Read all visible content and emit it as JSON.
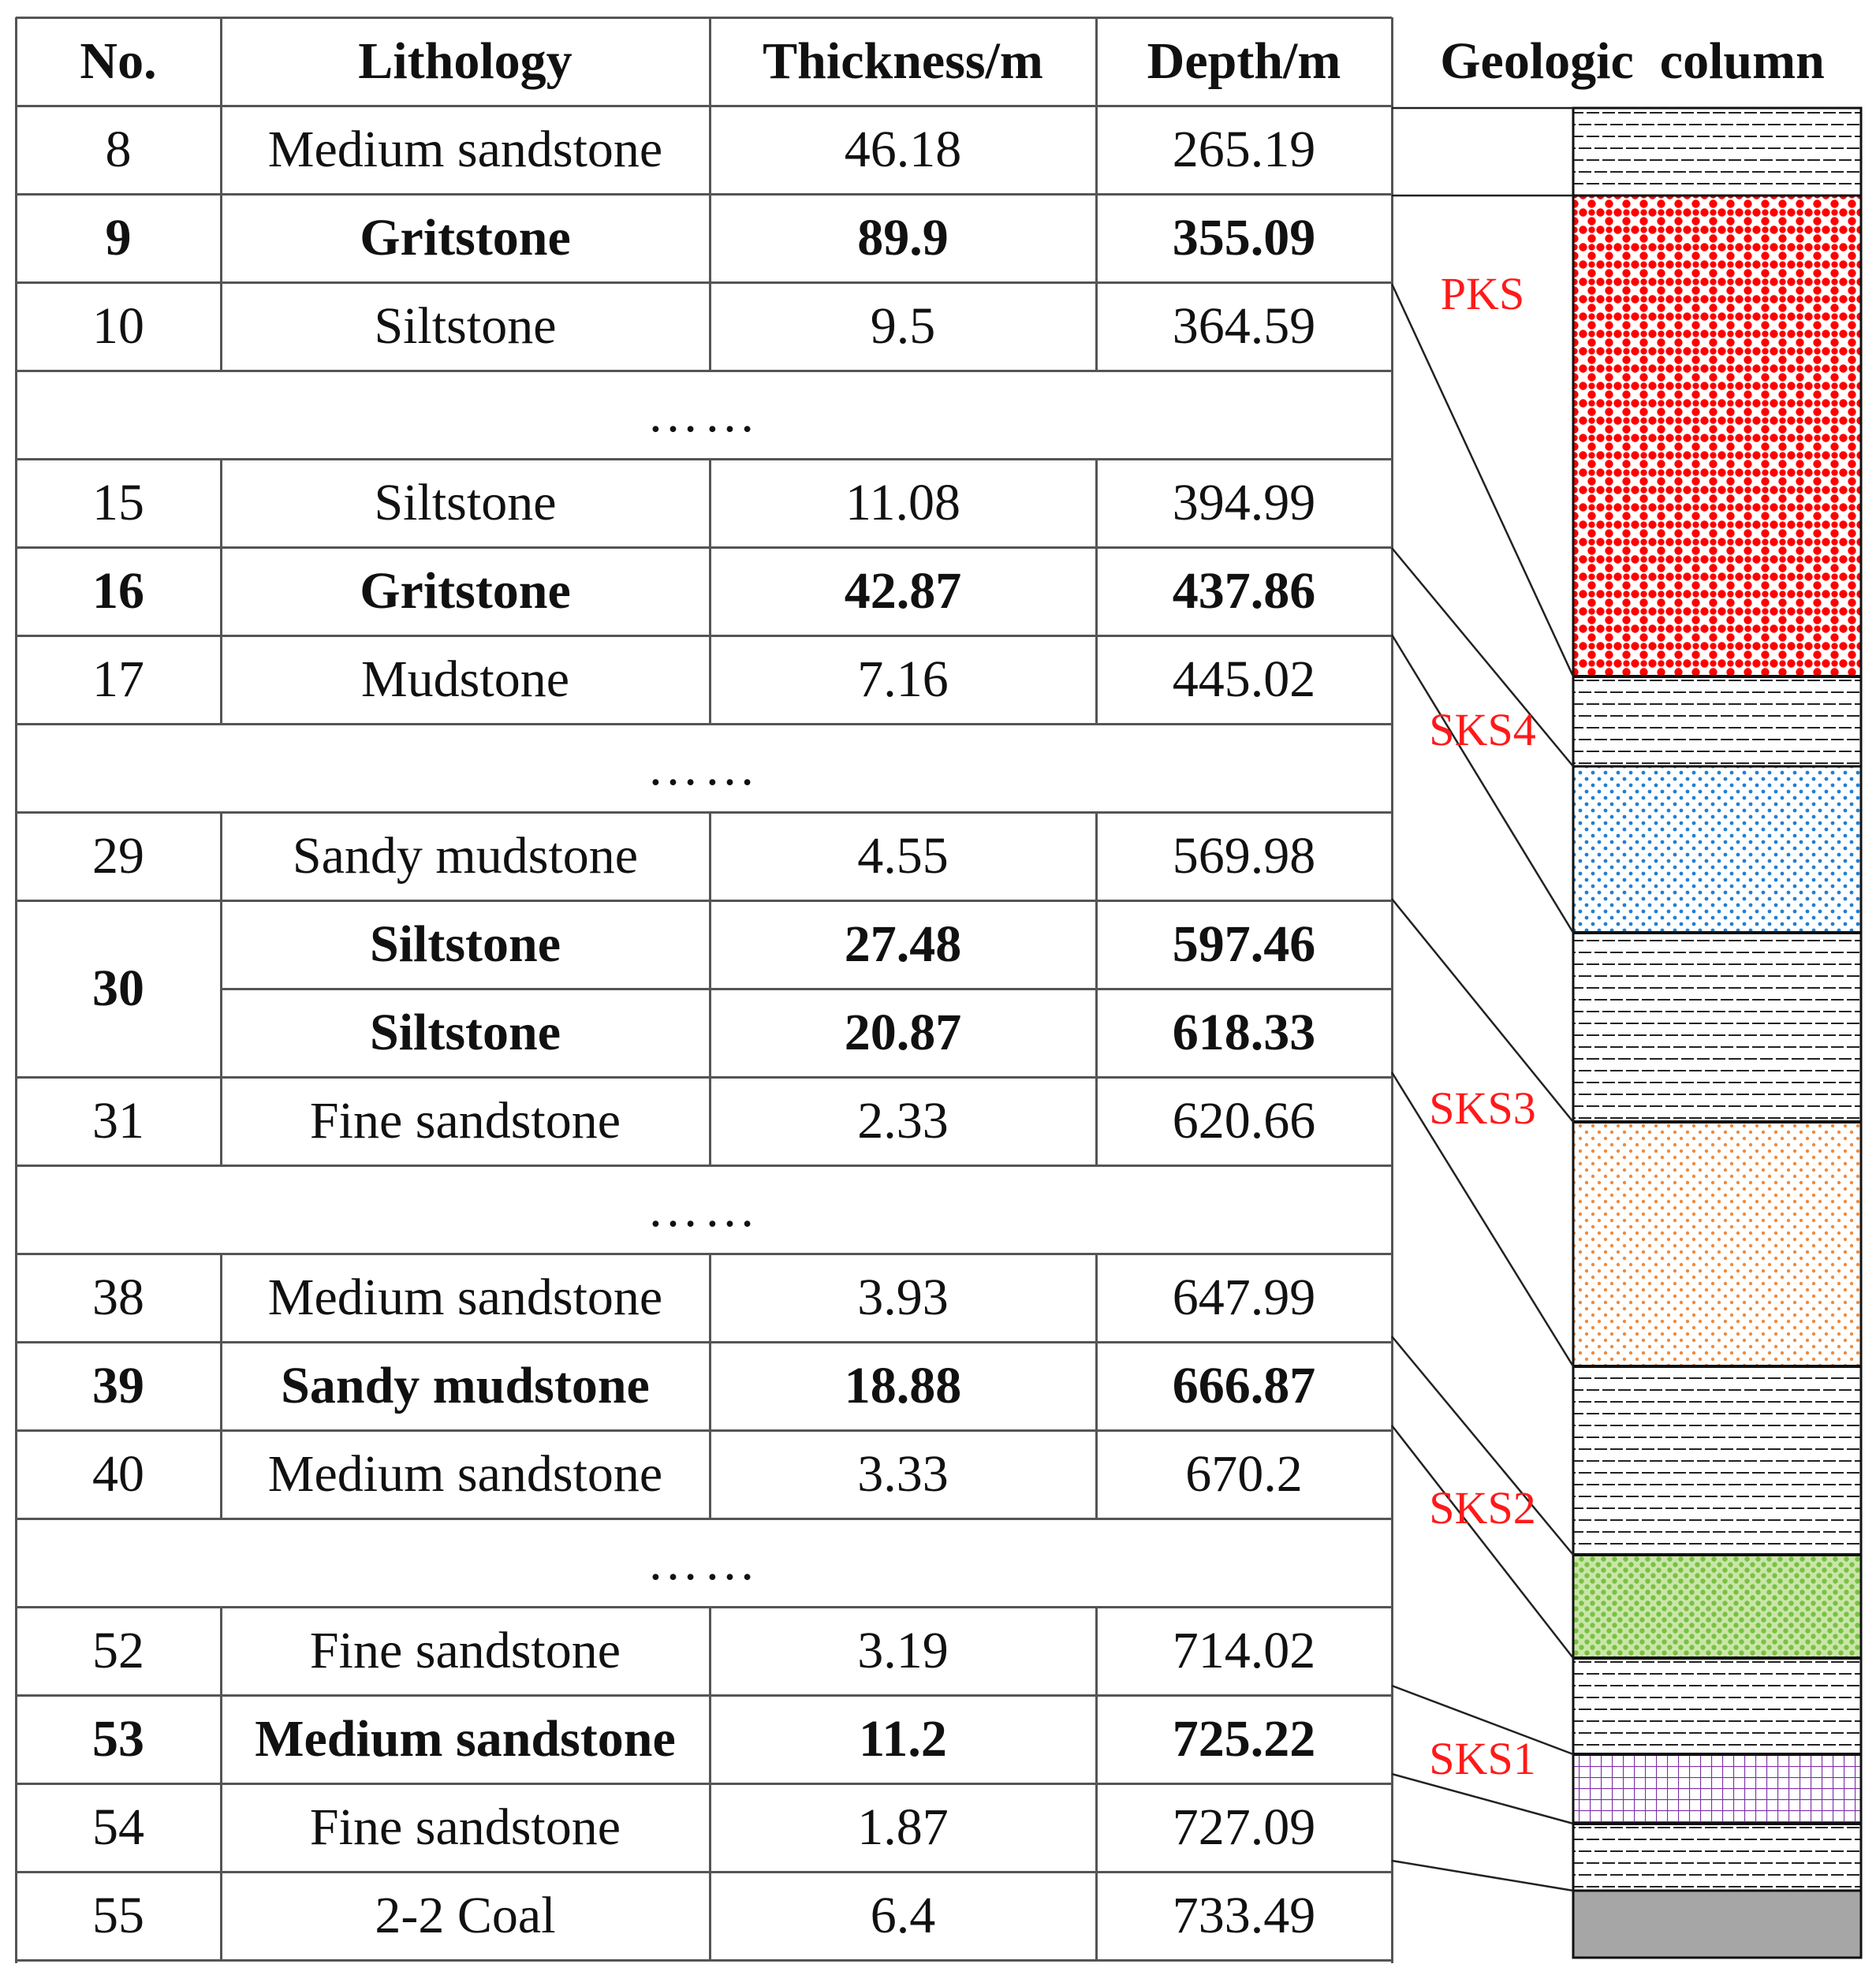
{
  "table": {
    "headers": {
      "no": "No.",
      "lithology": "Lithology",
      "thickness": "Thickness/m",
      "depth": "Depth/m"
    },
    "ellipsis": "……",
    "rows": [
      {
        "type": "data",
        "no": "8",
        "lithology": "Medium sandstone",
        "thickness": "46.18",
        "depth": "265.19",
        "bold": false
      },
      {
        "type": "data",
        "no": "9",
        "lithology": "Gritstone",
        "thickness": "89.9",
        "depth": "355.09",
        "bold": true
      },
      {
        "type": "data",
        "no": "10",
        "lithology": "Siltstone",
        "thickness": "9.5",
        "depth": "364.59",
        "bold": false
      },
      {
        "type": "ellipsis"
      },
      {
        "type": "data",
        "no": "15",
        "lithology": "Siltstone",
        "thickness": "11.08",
        "depth": "394.99",
        "bold": false
      },
      {
        "type": "data",
        "no": "16",
        "lithology": "Gritstone",
        "thickness": "42.87",
        "depth": "437.86",
        "bold": true
      },
      {
        "type": "data",
        "no": "17",
        "lithology": "Mudstone",
        "thickness": "7.16",
        "depth": "445.02",
        "bold": false
      },
      {
        "type": "ellipsis"
      },
      {
        "type": "data",
        "no": "29",
        "lithology": "Sandy mudstone",
        "thickness": "4.55",
        "depth": "569.98",
        "bold": false
      },
      {
        "type": "data",
        "no": "30",
        "lithology": "Siltstone",
        "thickness": "27.48",
        "depth": "597.46",
        "bold": true,
        "merged_no": "start"
      },
      {
        "type": "data",
        "no": "30",
        "lithology": "Siltstone",
        "thickness": "20.87",
        "depth": "618.33",
        "bold": true,
        "merged_no": "end"
      },
      {
        "type": "data",
        "no": "31",
        "lithology": "Fine sandstone",
        "thickness": "2.33",
        "depth": "620.66",
        "bold": false
      },
      {
        "type": "ellipsis"
      },
      {
        "type": "data",
        "no": "38",
        "lithology": "Medium sandstone",
        "thickness": "3.93",
        "depth": "647.99",
        "bold": false
      },
      {
        "type": "data",
        "no": "39",
        "lithology": "Sandy mudstone",
        "thickness": "18.88",
        "depth": "666.87",
        "bold": true
      },
      {
        "type": "data",
        "no": "40",
        "lithology": "Medium sandstone",
        "thickness": "3.33",
        "depth": "670.2",
        "bold": false
      },
      {
        "type": "ellipsis"
      },
      {
        "type": "data",
        "no": "52",
        "lithology": "Fine sandstone",
        "thickness": "3.19",
        "depth": "714.02",
        "bold": false
      },
      {
        "type": "data",
        "no": "53",
        "lithology": "Medium sandstone",
        "thickness": "11.2",
        "depth": "725.22",
        "bold": true
      },
      {
        "type": "data",
        "no": "54",
        "lithology": "Fine sandstone",
        "thickness": "1.87",
        "depth": "727.09",
        "bold": false
      },
      {
        "type": "data",
        "no": "55",
        "lithology": "2-2 Coal",
        "thickness": "6.4",
        "depth": "733.49",
        "bold": false
      }
    ]
  },
  "geologic_column": {
    "header": "Geologic  column",
    "members": [
      "PKS",
      "SKS4",
      "SKS3",
      "SKS2",
      "SKS1"
    ],
    "colors": {
      "pks_dots": "#ff0000",
      "sks4_dots": "#1f7fd6",
      "sks3_dots": "#f08a3c",
      "sks2_dots": "#7ac143",
      "sks1_grid": "#7b2fa8",
      "coal": "#a6a6a6",
      "label": "#ff1a1a"
    }
  }
}
